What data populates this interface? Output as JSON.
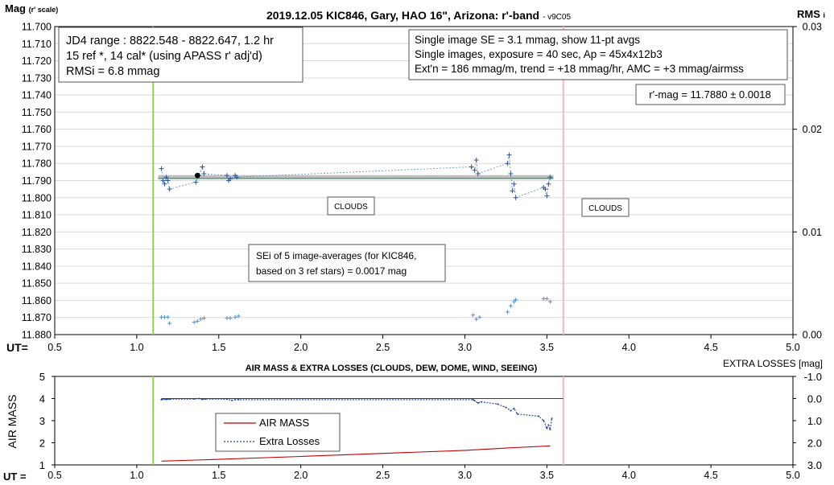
{
  "chart_data": [
    {
      "type": "scatter",
      "title": "2019.12.05 KIC846, Gary, HAO 16\", Arizona: r'-band",
      "version": "- v9C05",
      "ylabel_main": "Mag",
      "ylabel_sub": "(r' scale)",
      "y2label_main": "RMS",
      "y2label_sub": "i",
      "xlabel": "UT=",
      "xlim": [
        0.5,
        5.0
      ],
      "ylim": [
        11.7,
        11.88
      ],
      "y2lim": [
        0.0,
        0.03
      ],
      "x_ticks": [
        "0.5",
        "1.0",
        "1.5",
        "2.0",
        "2.5",
        "3.0",
        "3.5",
        "4.0",
        "4.5",
        "5.0"
      ],
      "y_ticks": [
        "11.700",
        "11.710",
        "11.720",
        "11.730",
        "11.740",
        "11.750",
        "11.760",
        "11.770",
        "11.780",
        "11.790",
        "11.800",
        "11.810",
        "11.820",
        "11.830",
        "11.840",
        "11.850",
        "11.860",
        "11.870",
        "11.880"
      ],
      "y2_ticks": [
        "0.03",
        "0.02",
        "0.01",
        "0.00"
      ],
      "grid": true,
      "vlines": [
        {
          "x": 1.1,
          "color": "#92d050"
        },
        {
          "x": 3.6,
          "color": "#f4b8b8"
        }
      ],
      "mean_mag": 11.788,
      "info_left": [
        "JD4 range : 8822.548 - 8822.647,  1.2  hr",
        "15 ref *, 14 cal* (using APASS r' adj'd)",
        "RMSi = 6.8 mmag"
      ],
      "info_right": [
        "Single image SE = 3.1 mmag, show  11-pt avgs",
        "Single images, exposure = 40 sec, Ap = 45x4x12b3",
        "Ext'n = 186 mmag/m, trend =  +18 mmag/hr, AMC = +3 mmag/airmss"
      ],
      "rmag_box": "r'-mag = 11.7880 ± 0.0018",
      "sei_box": [
        "SEi of 5 image-averages (for KIC846,",
        "based on 3 ref stars) = 0.0017 mag"
      ],
      "clouds_labels": [
        "CLOUDS",
        "CLOUDS"
      ],
      "mag_series": {
        "x": [
          1.15,
          1.16,
          1.17,
          1.18,
          1.19,
          1.2,
          1.36,
          1.38,
          1.4,
          1.41,
          1.55,
          1.56,
          1.57,
          1.6,
          1.61,
          3.04,
          3.06,
          3.07,
          3.08,
          3.26,
          3.27,
          3.28,
          3.29,
          3.3,
          3.31,
          3.48,
          3.49,
          3.5,
          3.51,
          3.52
        ],
        "y": [
          11.783,
          11.79,
          11.792,
          11.788,
          11.79,
          11.795,
          11.791,
          11.787,
          11.782,
          11.786,
          11.787,
          11.79,
          11.789,
          11.787,
          11.788,
          11.782,
          11.784,
          11.778,
          11.786,
          11.78,
          11.775,
          11.786,
          11.796,
          11.792,
          11.8,
          11.794,
          11.795,
          11.799,
          11.792,
          11.788
        ]
      },
      "highlight_point": {
        "x": 1.37,
        "y": 11.787
      },
      "rms_series": {
        "x": [
          1.15,
          1.17,
          1.19,
          1.2,
          1.35,
          1.37,
          1.39,
          1.41,
          1.55,
          1.57,
          1.6,
          1.62,
          3.05,
          3.07,
          3.09,
          3.26,
          3.28,
          3.3,
          3.31,
          3.48,
          3.5,
          3.52
        ],
        "y": [
          0.0017,
          0.0017,
          0.0017,
          0.0011,
          0.0012,
          0.0013,
          0.0015,
          0.0016,
          0.0016,
          0.0016,
          0.0017,
          0.0018,
          0.0019,
          0.0015,
          0.0017,
          0.0022,
          0.0028,
          0.0032,
          0.0034,
          0.0035,
          0.0035,
          0.0032
        ]
      }
    },
    {
      "type": "line",
      "title": "AIR MASS & EXTRA LOSSES (CLOUDS, DEW, DOME, WIND, SEEING)",
      "ylabel": "AIR MASS",
      "y2label": "EXTRA LOSSES [mag]",
      "xlabel": "UT =",
      "xlim": [
        0.5,
        5.0
      ],
      "ylim": [
        1,
        5
      ],
      "y2lim": [
        -1.0,
        3.0
      ],
      "x_ticks": [
        "0.5",
        "1.0",
        "1.5",
        "2.0",
        "2.5",
        "3.0",
        "3.5",
        "4.0",
        "4.5",
        "5.0"
      ],
      "y_ticks": [
        "5",
        "4",
        "3",
        "2",
        "1"
      ],
      "y2_ticks": [
        "-1.0",
        "0.0",
        "1.0",
        "2.0",
        "3.0"
      ],
      "grid": false,
      "vlines": [
        {
          "x": 1.1,
          "color": "#92d050"
        },
        {
          "x": 3.6,
          "color": "#f4b8b8"
        }
      ],
      "legend": [
        "AIR MASS",
        "Extra Losses"
      ],
      "series": [
        {
          "name": "AIR MASS",
          "color": "#c00000",
          "x": [
            1.15,
            1.5,
            2.0,
            2.5,
            3.0,
            3.3,
            3.52
          ],
          "y": [
            1.17,
            1.25,
            1.38,
            1.52,
            1.66,
            1.78,
            1.86
          ]
        },
        {
          "name": "Extra Losses",
          "color": "#1f3f9f",
          "x": [
            1.15,
            1.16,
            1.18,
            1.2,
            1.35,
            1.38,
            1.4,
            1.42,
            1.55,
            1.58,
            1.6,
            1.62,
            3.05,
            3.06,
            3.08,
            3.1,
            3.2,
            3.25,
            3.28,
            3.3,
            3.32,
            3.45,
            3.48,
            3.5,
            3.51,
            3.52,
            3.53
          ],
          "y": [
            0.05,
            0.03,
            0.04,
            0.03,
            0.02,
            0.0,
            0.04,
            0.02,
            0.03,
            0.08,
            0.05,
            0.05,
            0.05,
            0.1,
            0.2,
            0.15,
            0.25,
            0.4,
            0.55,
            0.45,
            0.7,
            0.8,
            1.0,
            1.35,
            1.2,
            1.4,
            0.9
          ]
        }
      ]
    }
  ]
}
